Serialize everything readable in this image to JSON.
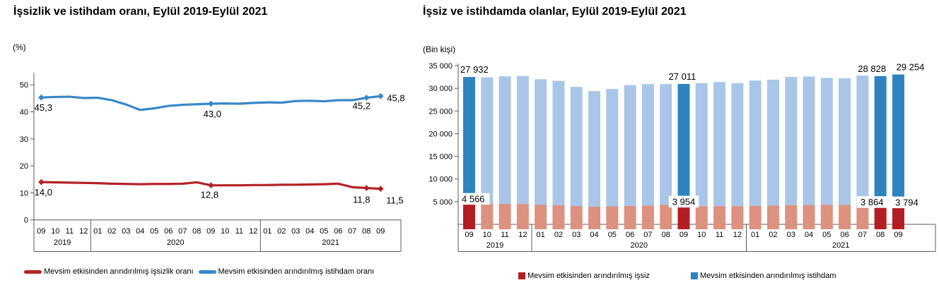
{
  "chart_data": [
    {
      "type": "line",
      "title": "İşsizlik ve istihdam oranı, Eylül 2019-Eylül 2021",
      "unit_label": "(%)",
      "months": [
        "09",
        "10",
        "11",
        "12",
        "01",
        "02",
        "03",
        "04",
        "05",
        "06",
        "07",
        "08",
        "09",
        "10",
        "11",
        "12",
        "01",
        "02",
        "03",
        "04",
        "05",
        "06",
        "07",
        "08",
        "09"
      ],
      "year_groups": [
        {
          "label": "2019",
          "span": 4
        },
        {
          "label": "2020",
          "span": 12
        },
        {
          "label": "2021",
          "span": 9
        }
      ],
      "yticks": [
        {
          "v": 0,
          "label": "0"
        },
        {
          "v": 10,
          "label": "10"
        },
        {
          "v": 20,
          "label": "20"
        },
        {
          "v": 30,
          "label": "30"
        },
        {
          "v": 40,
          "label": "40"
        },
        {
          "v": 50,
          "label": "50"
        }
      ],
      "ylim": [
        0,
        55
      ],
      "grid": false,
      "legend_position": "bottom",
      "series": [
        {
          "name": "Mevsim etkisinden arındırılmış işsizlik oranı",
          "color": "#b42328",
          "values": [
            14.0,
            13.9,
            13.8,
            13.7,
            13.6,
            13.4,
            13.3,
            13.2,
            13.3,
            13.3,
            13.4,
            13.9,
            12.8,
            12.8,
            12.8,
            12.9,
            12.9,
            13.0,
            13.0,
            13.1,
            13.2,
            13.4,
            12.1,
            11.8,
            11.5
          ]
        },
        {
          "name": "Mevsim etkisinden arındırılmış istihdam oranı",
          "color": "#3787c8",
          "values": [
            45.3,
            45.5,
            45.6,
            45.1,
            45.2,
            44.3,
            42.7,
            40.7,
            41.3,
            42.2,
            42.6,
            42.8,
            43.0,
            43.1,
            43.0,
            43.3,
            43.5,
            43.4,
            44.0,
            44.1,
            43.9,
            44.3,
            44.3,
            45.2,
            45.8
          ]
        }
      ],
      "point_labels": [
        {
          "series": 0,
          "index": 0,
          "text": "14,0"
        },
        {
          "series": 0,
          "index": 12,
          "text": "12,8"
        },
        {
          "series": 0,
          "index": 23,
          "text": "11,8"
        },
        {
          "series": 0,
          "index": 24,
          "text": "11,5"
        },
        {
          "series": 1,
          "index": 0,
          "text": "45,3"
        },
        {
          "series": 1,
          "index": 12,
          "text": "43,0"
        },
        {
          "series": 1,
          "index": 23,
          "text": "45,2"
        },
        {
          "series": 1,
          "index": 24,
          "text": "45,8"
        }
      ]
    },
    {
      "type": "stacked-bar",
      "title": "İşsiz ve istihdamda olanlar, Eylül 2019-Eylül 2021",
      "unit_label": "(Bin kişi)",
      "months": [
        "09",
        "10",
        "11",
        "12",
        "01",
        "02",
        "03",
        "04",
        "05",
        "06",
        "07",
        "08",
        "09",
        "10",
        "11",
        "12",
        "01",
        "02",
        "03",
        "04",
        "05",
        "06",
        "07",
        "08",
        "09"
      ],
      "year_groups": [
        {
          "label": "2019",
          "span": 4
        },
        {
          "label": "2020",
          "span": 12
        },
        {
          "label": "2021",
          "span": 9
        }
      ],
      "yticks": [
        {
          "v": 5000,
          "label": "5 000"
        },
        {
          "v": 10000,
          "label": "10 000"
        },
        {
          "v": 15000,
          "label": "15 000"
        },
        {
          "v": 20000,
          "label": "20 000"
        },
        {
          "v": 25000,
          "label": "25 000"
        },
        {
          "v": 30000,
          "label": "30 000"
        },
        {
          "v": 35000,
          "label": "35 000"
        }
      ],
      "ylim": [
        0,
        35000
      ],
      "grid": false,
      "legend_position": "bottom",
      "highlight_indices": [
        0,
        12,
        23,
        24
      ],
      "series": [
        {
          "name": "Mevsim etkisinden arındırılmış işsiz",
          "color": "#b41e23",
          "muted_color": "#dd917f",
          "values": [
            4566,
            4500,
            4510,
            4480,
            4350,
            4240,
            4030,
            3880,
            3970,
            4080,
            4140,
            4300,
            3954,
            3990,
            4020,
            4020,
            4090,
            4150,
            4230,
            4270,
            4300,
            4310,
            3970,
            3864,
            3794
          ]
        },
        {
          "name": "Mevsim etkisinden arındırılmış istihdam",
          "color": "#2e84c1",
          "muted_color": "#a9c6e8",
          "values": [
            27932,
            27900,
            28140,
            28220,
            27650,
            27410,
            26290,
            25500,
            25860,
            26630,
            26780,
            26620,
            27011,
            27150,
            27370,
            27120,
            27610,
            27750,
            28270,
            28330,
            28000,
            27890,
            28820,
            28828,
            29254
          ]
        }
      ],
      "bar_labels": [
        {
          "series": 1,
          "index": 0,
          "text": "27 932"
        },
        {
          "series": 0,
          "index": 0,
          "text": "4 566"
        },
        {
          "series": 1,
          "index": 12,
          "text": "27 011"
        },
        {
          "series": 0,
          "index": 12,
          "text": "3 954"
        },
        {
          "series": 1,
          "index": 23,
          "text": "28 828"
        },
        {
          "series": 0,
          "index": 23,
          "text": "3 864"
        },
        {
          "series": 1,
          "index": 24,
          "text": "29 254"
        },
        {
          "series": 0,
          "index": 24,
          "text": "3 794"
        }
      ]
    }
  ]
}
